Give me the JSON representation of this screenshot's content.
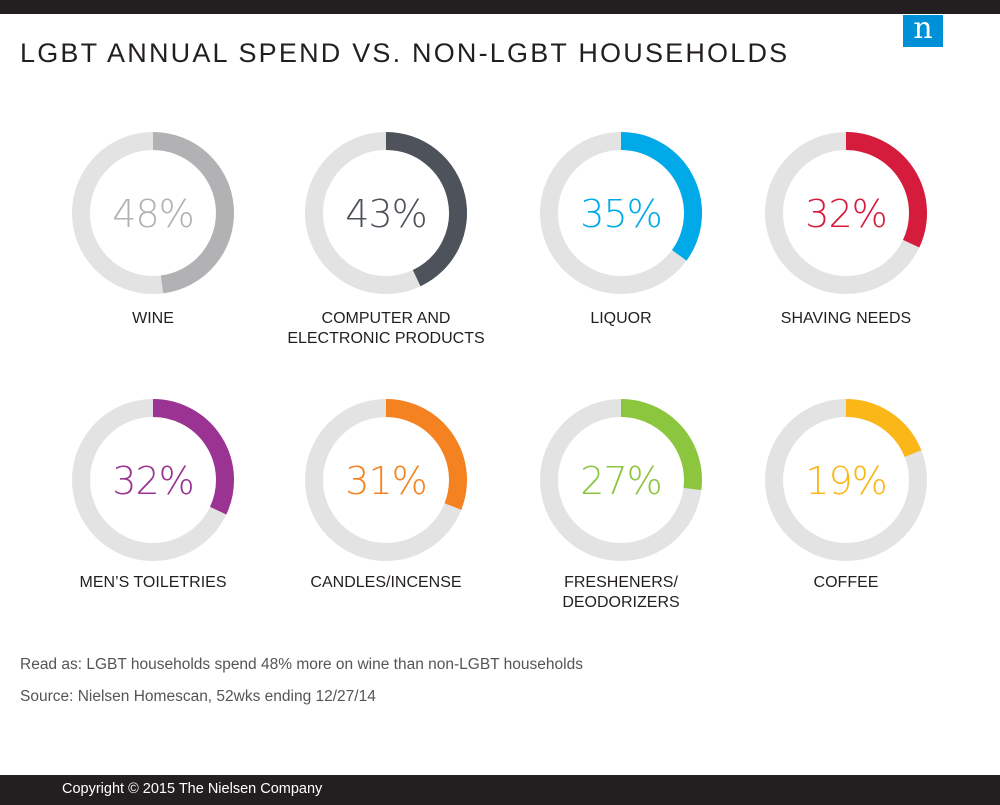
{
  "header": {
    "title": "LGBT ANNUAL SPEND VS. NON-LGBT HOUSEHOLDS",
    "logo_letter": "n",
    "logo_color": "#0090d8"
  },
  "chart_data": {
    "type": "donut",
    "title": "LGBT ANNUAL SPEND VS. NON-LGBT HOUSEHOLDS",
    "unit": "%",
    "track_color": "#e3e3e3",
    "items": [
      {
        "category": "WINE",
        "value": 48,
        "label": "48%",
        "color": "#b2b1b3"
      },
      {
        "category": "COMPUTER AND\nELECTRONIC PRODUCTS",
        "value": 43,
        "label": "43%",
        "color": "#4e535b"
      },
      {
        "category": "LIQUOR",
        "value": 35,
        "label": "35%",
        "color": "#00a9e8"
      },
      {
        "category": "SHAVING NEEDS",
        "value": 32,
        "label": "32%",
        "color": "#d61c3c"
      },
      {
        "category": "MEN’S TOILETRIES",
        "value": 32,
        "label": "32%",
        "color": "#9a3391"
      },
      {
        "category": "CANDLES/INCENSE",
        "value": 31,
        "label": "31%",
        "color": "#f58220"
      },
      {
        "category": "FRESHENERS/\nDEODORIZERS",
        "value": 27,
        "label": "27%",
        "color": "#8cc63f"
      },
      {
        "category": "COFFEE",
        "value": 19,
        "label": "19%",
        "color": "#fbb617"
      }
    ]
  },
  "notes": {
    "read_as": "Read as: LGBT households spend 48% more on wine than non-LGBT households",
    "source": "Source: Nielsen Homescan, 52wks ending 12/27/14"
  },
  "footer": {
    "copyright": "Copyright © 2015 The Nielsen Company"
  }
}
